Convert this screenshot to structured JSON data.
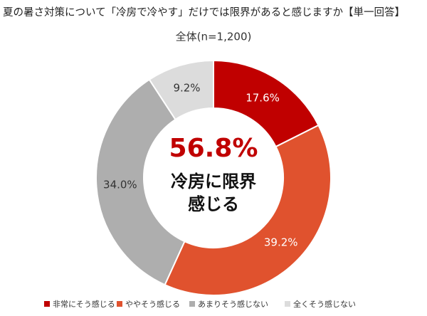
{
  "chart_data": {
    "type": "donut",
    "title": "夏の暑さ対策について「冷房で冷やす」だけでは限界があると感じますか【単一回答】",
    "subtitle": "全体(n=1,200)",
    "categories": [
      "非常にそう感じる",
      "ややそう感じる",
      "あまりそう感じない",
      "全くそう感じない"
    ],
    "values": [
      17.6,
      39.2,
      34.0,
      9.2
    ],
    "value_labels": [
      "17.6%",
      "39.2%",
      "34.0%",
      "9.2%"
    ],
    "colors": [
      "#c00000",
      "#e0522e",
      "#aeaeae",
      "#dcdcdc"
    ],
    "center_annotation": "56.8%",
    "center_label": [
      "冷房に限界",
      "感じる"
    ]
  }
}
